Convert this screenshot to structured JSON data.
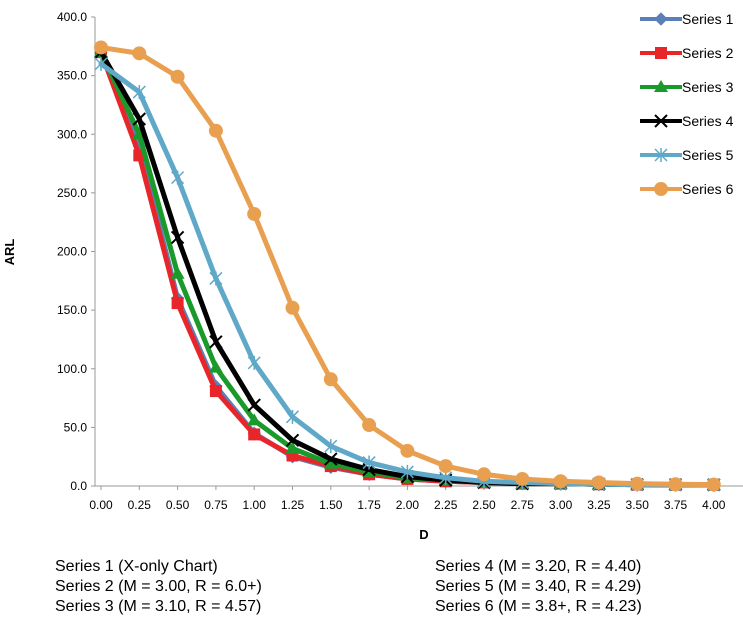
{
  "chart_data": {
    "type": "line",
    "xlabel": "D",
    "ylabel": "ARL",
    "ylim": [
      0,
      400
    ],
    "x_tick_labels": [
      "0.00",
      "0.25",
      "0.50",
      "0.75",
      "1.00",
      "1.25",
      "1.50",
      "1.75",
      "2.00",
      "2.25",
      "2.50",
      "2.75",
      "3.00",
      "3.25",
      "3.50",
      "3.75",
      "4.00"
    ],
    "y_tick_labels": [
      "0.0",
      "50.0",
      "100.0",
      "150.0",
      "200.0",
      "250.0",
      "300.0",
      "350.0",
      "400.0"
    ],
    "x": [
      0,
      0.25,
      0.5,
      0.75,
      1,
      1.25,
      1.5,
      1.75,
      2,
      2.25,
      2.5,
      2.75,
      3,
      3.25,
      3.5,
      3.75,
      4
    ],
    "legend_position": "top-right",
    "series": [
      {
        "name": "Series 1",
        "color": "#5b7fb8",
        "marker": "diamond",
        "values": [
          370,
          290,
          160,
          85,
          45,
          25,
          16,
          10,
          6,
          4,
          3,
          2,
          2,
          1.5,
          1.2,
          1.1,
          1
        ]
      },
      {
        "name": "Series 2",
        "color": "#e8262a",
        "marker": "square",
        "values": [
          370,
          282,
          156,
          81,
          44,
          26,
          17,
          10,
          6,
          4,
          3,
          2,
          2,
          1.5,
          1.2,
          1.1,
          1
        ]
      },
      {
        "name": "Series 3",
        "color": "#1a9a2a",
        "marker": "triangle",
        "values": [
          370,
          300,
          181,
          101,
          56,
          32,
          19,
          12,
          7,
          5,
          3,
          2,
          2,
          1.5,
          1.2,
          1.1,
          1
        ]
      },
      {
        "name": "Series 4",
        "color": "#000000",
        "marker": "x",
        "values": [
          370,
          313,
          212,
          123,
          69,
          39,
          23,
          14,
          8,
          5,
          3,
          2,
          2,
          1.5,
          1.2,
          1.1,
          1
        ]
      },
      {
        "name": "Series 5",
        "color": "#5fa8c8",
        "marker": "asterisk",
        "values": [
          360,
          336,
          263,
          177,
          105,
          59,
          34,
          20,
          12,
          7,
          4,
          3,
          2,
          1.5,
          1.2,
          1.1,
          1
        ]
      },
      {
        "name": "Series 6",
        "color": "#e8a050",
        "marker": "circle",
        "values": [
          374,
          369,
          349,
          303,
          232,
          152,
          91,
          52,
          30,
          17,
          10,
          6,
          4,
          3,
          2,
          1.5,
          1.2
        ]
      }
    ]
  },
  "caption": {
    "left": [
      "Series 1 (X-only Chart)",
      "Series 2 (M = 3.00, R = 6.0+)",
      "Series 3 (M = 3.10, R = 4.57)"
    ],
    "right": [
      "Series 4 (M = 3.20, R = 4.40)",
      "Series 5 (M = 3.40, R = 4.29)",
      "Series 6 (M = 3.8+, R = 4.23)"
    ]
  }
}
